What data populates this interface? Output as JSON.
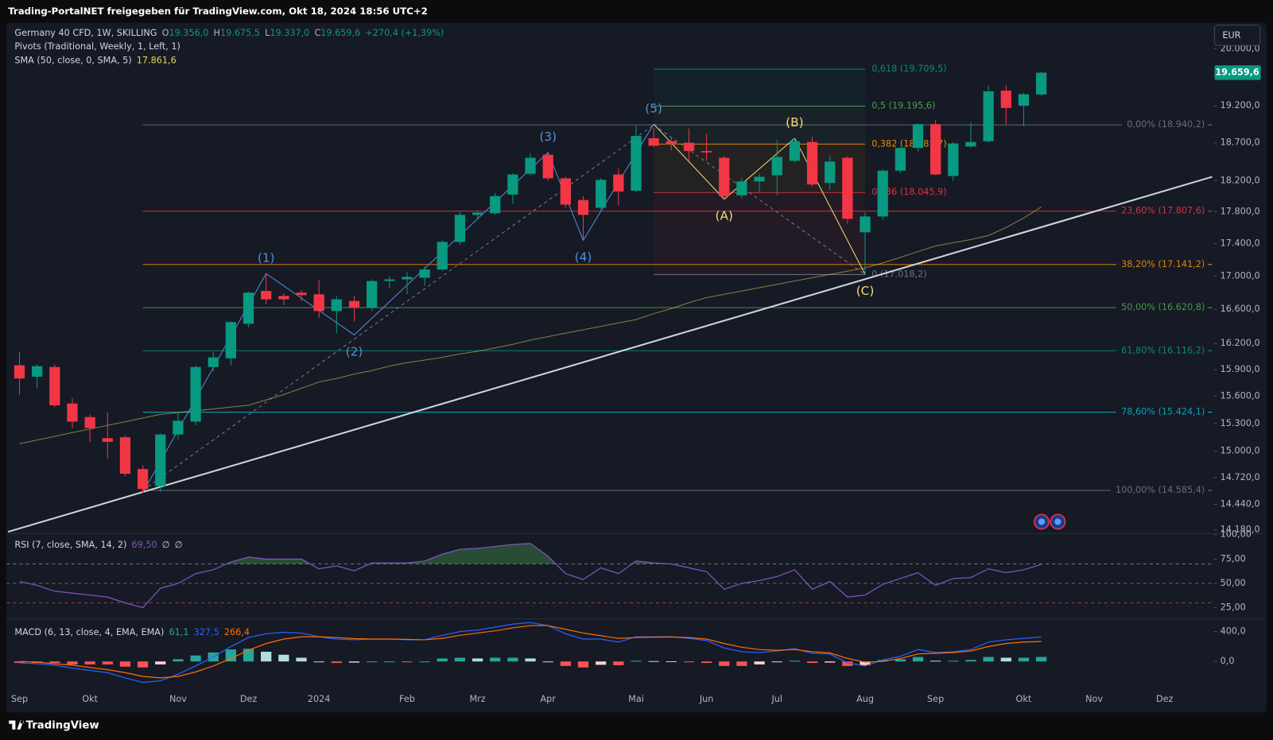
{
  "header": {
    "caption": "Trading-PortalNET freigegeben für TradingView.com, Okt 18, 2024 18:56 UTC+2"
  },
  "toolbar": {
    "currency": "EUR"
  },
  "footer": {
    "brand": "TradingView"
  },
  "chart_data": [
    {
      "type": "candlestick",
      "title": "Germany 40 CFD, 1W, SKILLING",
      "quote": [
        {
          "key": "O",
          "value": "19.356,0"
        },
        {
          "key": "H",
          "value": "19.675,5"
        },
        {
          "key": "L",
          "value": "19.337,0"
        },
        {
          "key": "C",
          "value": "19.659,6"
        },
        {
          "key": "",
          "value": "+270,4 (+1,39%)"
        }
      ],
      "notes": [
        "Pivots (Traditional, Weekly, 1, Left, 1)"
      ],
      "categories": [
        "Sep",
        null,
        null,
        null,
        "Okt",
        null,
        null,
        null,
        null,
        "Nov",
        null,
        null,
        null,
        "Dez",
        null,
        null,
        null,
        "2024",
        null,
        null,
        null,
        null,
        "Feb",
        null,
        null,
        null,
        "Mrz",
        null,
        null,
        null,
        "Apr",
        null,
        null,
        null,
        null,
        "Mai",
        null,
        null,
        null,
        "Jun",
        null,
        null,
        null,
        "Jul",
        null,
        null,
        null,
        null,
        "Aug",
        null,
        null,
        null,
        "Sep",
        null,
        null,
        null,
        null,
        "Okt",
        null,
        null,
        null,
        "Nov",
        null,
        null,
        null,
        "Dez",
        null,
        null
      ],
      "open": [
        15950,
        15820,
        15930,
        15520,
        15370,
        15140,
        15150,
        14810,
        14630,
        15180,
        15320,
        15930,
        16030,
        16430,
        16820,
        16760,
        16800,
        16780,
        16580,
        16700,
        16620,
        16940,
        16960,
        16980,
        17080,
        17420,
        17760,
        17780,
        18020,
        18290,
        18540,
        18230,
        17950,
        17850,
        18280,
        18070,
        18760,
        18720,
        18700,
        18590,
        18500,
        18010,
        18190,
        18270,
        18460,
        18710,
        18170,
        18500,
        17540,
        17740,
        18330,
        18630,
        18950,
        18260,
        18650,
        18720,
        19410,
        19200,
        19356,
        null,
        null,
        null,
        null,
        null,
        null,
        null,
        null,
        null
      ],
      "high": [
        16100,
        15960,
        15960,
        15580,
        15400,
        15420,
        15170,
        14850,
        15190,
        15420,
        15950,
        16100,
        16460,
        16810,
        17030,
        16790,
        16830,
        16950,
        16760,
        16760,
        16960,
        17000,
        17050,
        17120,
        17440,
        17800,
        17820,
        18040,
        18300,
        18560,
        18570,
        18250,
        18000,
        18230,
        18360,
        18930,
        18900,
        18780,
        18890,
        18820,
        18530,
        18230,
        18290,
        18740,
        18770,
        18780,
        18530,
        18520,
        17790,
        18350,
        18640,
        18960,
        19010,
        18710,
        18980,
        19480,
        19490,
        19380,
        19675.5,
        null,
        null,
        null,
        null,
        null,
        null,
        null,
        null,
        null
      ],
      "low": [
        15620,
        15690,
        15480,
        15250,
        15100,
        14920,
        14730,
        14560,
        14570,
        15130,
        15280,
        15880,
        15950,
        16390,
        16660,
        16650,
        16700,
        16500,
        16320,
        16460,
        16580,
        16850,
        16780,
        16880,
        17060,
        17380,
        17700,
        17760,
        17900,
        18270,
        18200,
        17850,
        17440,
        17830,
        17880,
        18050,
        18640,
        18600,
        18450,
        18460,
        17960,
        17970,
        18060,
        18010,
        18440,
        18120,
        18080,
        17650,
        17020,
        17700,
        18300,
        18580,
        18270,
        18200,
        18630,
        18700,
        18950,
        18920,
        19337,
        null,
        null,
        null,
        null,
        null,
        null,
        null,
        null,
        null
      ],
      "close": [
        15800,
        15940,
        15500,
        15320,
        15250,
        15100,
        14760,
        14600,
        15180,
        15330,
        15930,
        16040,
        16450,
        16800,
        16720,
        16720,
        16770,
        16580,
        16720,
        16620,
        16940,
        16960,
        16990,
        17080,
        17420,
        17760,
        17790,
        18000,
        18280,
        18500,
        18230,
        17890,
        17760,
        18210,
        18060,
        18790,
        18660,
        18680,
        18590,
        18570,
        18000,
        18190,
        18250,
        18510,
        18720,
        18150,
        18450,
        17710,
        17740,
        18330,
        18630,
        18950,
        18280,
        18690,
        18710,
        19400,
        19170,
        19360,
        19659.6,
        null,
        null,
        null,
        null,
        null,
        null,
        null,
        null,
        null
      ],
      "up_color": "#089981",
      "down_color": "#f23645",
      "series": [
        {
          "name": "SMA (50, close, 0, SMA, 5)",
          "color": "#e6d35a",
          "last_label": "17.861,6",
          "values": [
            15080,
            15120,
            15160,
            15200,
            15240,
            15280,
            15320,
            15360,
            15400,
            15420,
            15440,
            15460,
            15480,
            15500,
            15560,
            15620,
            15690,
            15760,
            15800,
            15850,
            15890,
            15940,
            15980,
            16010,
            16040,
            16080,
            16110,
            16150,
            16190,
            16240,
            16280,
            16320,
            16360,
            16400,
            16440,
            16480,
            16550,
            16610,
            16680,
            16740,
            16780,
            16820,
            16860,
            16900,
            16940,
            16980,
            17020,
            17060,
            17100,
            17160,
            17230,
            17300,
            17370,
            17410,
            17450,
            17500,
            17600,
            17720,
            17861.6,
            null,
            null,
            null,
            null,
            null,
            null,
            null,
            null,
            null
          ]
        }
      ],
      "log_scale": true,
      "ylim": [
        14147,
        20363
      ],
      "yticks": [
        {
          "value": 20000,
          "label": "20.000,0"
        },
        {
          "value": 19200,
          "label": "19.200,0"
        },
        {
          "value": 18700,
          "label": "18.700,0"
        },
        {
          "value": 18200,
          "label": "18.200,0"
        },
        {
          "value": 17800,
          "label": "17.800,0"
        },
        {
          "value": 17400,
          "label": "17.400,0"
        },
        {
          "value": 17000,
          "label": "17.000,0"
        },
        {
          "value": 16600,
          "label": "16.600,0"
        },
        {
          "value": 16200,
          "label": "16.200,0"
        },
        {
          "value": 15900,
          "label": "15.900,0"
        },
        {
          "value": 15600,
          "label": "15.600,0"
        },
        {
          "value": 15300,
          "label": "15.300,0"
        },
        {
          "value": 15000,
          "label": "15.000,0"
        },
        {
          "value": 14720,
          "label": "14.720,0"
        },
        {
          "value": 14440,
          "label": "14.440,0"
        },
        {
          "value": 14180,
          "label": "14.180,0"
        }
      ],
      "last_price": {
        "value": 19659.6,
        "label": "19.659,6"
      },
      "fibs": [
        {
          "start_index": 7,
          "extend_right": true,
          "levels": [
            {
              "value": 18940.2,
              "label": "0,00% (18.940,2)",
              "color": "#787b86"
            },
            {
              "value": 17807.6,
              "label": "23,60% (17.807,6)",
              "color": "#f23645"
            },
            {
              "value": 17141.2,
              "label": "38,20% (17.141,2)",
              "color": "#ff9800"
            },
            {
              "value": 16620.8,
              "label": "50,00% (16.620,8)",
              "color": "#4caf50"
            },
            {
              "value": 16116.2,
              "label": "61,80% (16.116,2)",
              "color": "#089981"
            },
            {
              "value": 15424.1,
              "label": "78,60% (15.424,1)",
              "color": "#00bcd4"
            },
            {
              "value": 14585.4,
              "label": "100,00% (14.585,4)",
              "color": "#787b86"
            }
          ]
        },
        {
          "start_index": 36,
          "end_index": 48,
          "extend_right": false,
          "levels": [
            {
              "value": 17018.2,
              "label": "0 (17.018,2)",
              "color": "#787b86"
            },
            {
              "value": 18045.9,
              "label": "0,236 (18.045,9)",
              "color": "#f23645"
            },
            {
              "value": 18681.7,
              "label": "0,382 (18.681,7)",
              "color": "#ff9800"
            },
            {
              "value": 19195.6,
              "label": "0,5 (19.195,6)",
              "color": "#4caf50"
            },
            {
              "value": 19709.5,
              "label": "0,618 (19.709,5)",
              "color": "#089981"
            }
          ]
        }
      ],
      "dashed_lines": {
        "color": "#787b86",
        "segments": [
          [
            {
              "index": 7,
              "price": 14585.4
            },
            {
              "index": 36,
              "price": 18940.2
            }
          ],
          [
            {
              "index": 36,
              "price": 18940.2
            },
            {
              "index": 48,
              "price": 17018.2
            }
          ]
        ]
      },
      "waves": [
        {
          "color": "#4f8fdc",
          "points": [
            {
              "index": 7,
              "price": 14560
            },
            {
              "index": 14,
              "price": 17030,
              "label": "(1)"
            },
            {
              "index": 19,
              "price": 16300,
              "label": "(2)"
            },
            {
              "index": 30,
              "price": 18570,
              "label": "(3)"
            },
            {
              "index": 32,
              "price": 17440,
              "label": "(4)"
            },
            {
              "index": 36,
              "price": 18950,
              "label": "(5)"
            }
          ]
        },
        {
          "color": "#f5dd72",
          "points": [
            {
              "index": 36,
              "price": 18950
            },
            {
              "index": 40,
              "price": 17960,
              "label": "(A)"
            },
            {
              "index": 44,
              "price": 18760,
              "label": "(B)"
            },
            {
              "index": 48,
              "price": 17020,
              "label": "(C)"
            }
          ]
        }
      ],
      "trendline": {
        "color": "#d1d4dc",
        "points": [
          {
            "index": -0.65,
            "price": 14160
          },
          {
            "index": 67.7,
            "price": 18250
          }
        ]
      }
    },
    {
      "type": "rsi",
      "notes": [
        "∅",
        "∅"
      ],
      "series": [
        {
          "name": "RSI (7, close, SMA, 14, 2)",
          "color": "#7e57c2",
          "last_label": "69,50",
          "values": [
            52,
            48,
            42,
            40,
            38,
            36,
            30,
            25,
            45,
            50,
            60,
            64,
            72,
            77,
            75,
            75,
            75,
            65,
            68,
            63,
            71,
            71,
            71,
            73,
            80,
            85,
            86,
            88,
            90,
            91,
            78,
            60,
            54,
            66,
            60,
            73,
            71,
            70,
            66,
            62,
            44,
            50,
            53,
            57,
            64,
            44,
            52,
            36,
            38,
            49,
            55,
            61,
            48,
            55,
            56,
            65,
            61,
            64,
            69.5,
            null,
            null,
            null,
            null,
            null,
            null,
            null,
            null,
            null
          ]
        }
      ],
      "levels": [
        {
          "value": 70,
          "color": "#5d7a64"
        },
        {
          "value": 50,
          "color": "#5d606b"
        },
        {
          "value": 30,
          "color": "#8a3a45"
        }
      ],
      "overbought_color": "#4caf50",
      "ylim": [
        13.3,
        100.8
      ],
      "yticks": [
        {
          "value": 100,
          "label": "100,00"
        },
        {
          "value": 75,
          "label": "75,00"
        },
        {
          "value": 50,
          "label": "50,00"
        },
        {
          "value": 25,
          "label": "25,00"
        }
      ]
    },
    {
      "type": "macd",
      "title": "MACD (6, 13, close, 4, EMA, EMA)",
      "histogram": {
        "last_label": "61,1",
        "colors": [
          "#26a69a",
          "#b2dfdb",
          "#ffcdd2",
          "#ff5252"
        ],
        "values": [
          -20,
          -20,
          -20,
          -40,
          -40,
          -40,
          -70,
          -80,
          -40,
          30,
          80,
          120,
          160,
          170,
          130,
          90,
          50,
          0,
          -20,
          -15,
          0,
          0,
          -5,
          0,
          40,
          50,
          40,
          50,
          50,
          40,
          0,
          -60,
          -80,
          -45,
          -50,
          10,
          5,
          2,
          -10,
          -20,
          -60,
          -60,
          -40,
          -10,
          10,
          -20,
          -15,
          -60,
          -50,
          20,
          30,
          60,
          10,
          10,
          20,
          60,
          50,
          50,
          61.1,
          null,
          null,
          null,
          null,
          null,
          null,
          null,
          null,
          null
        ]
      },
      "series": [
        {
          "name": "MACD",
          "color": "#2962ff",
          "last_label": "327,5",
          "values": [
            -20,
            -30,
            -50,
            -90,
            -120,
            -150,
            -220,
            -280,
            -260,
            -170,
            -60,
            60,
            200,
            320,
            370,
            390,
            380,
            330,
            300,
            290,
            300,
            300,
            290,
            290,
            350,
            400,
            420,
            460,
            500,
            520,
            480,
            370,
            300,
            300,
            260,
            330,
            330,
            330,
            310,
            280,
            180,
            130,
            120,
            140,
            170,
            110,
            100,
            -20,
            -60,
            20,
            70,
            160,
            120,
            130,
            160,
            260,
            290,
            310,
            327.5,
            null,
            null,
            null,
            null,
            null,
            null,
            null,
            null,
            null
          ]
        },
        {
          "name": "Signal",
          "color": "#ff6d00",
          "last_label": "266,4",
          "values": [
            0,
            -10,
            -30,
            -50,
            -80,
            -110,
            -150,
            -200,
            -220,
            -200,
            -140,
            -60,
            40,
            150,
            240,
            300,
            330,
            330,
            320,
            305,
            300,
            300,
            295,
            290,
            310,
            350,
            380,
            410,
            450,
            480,
            480,
            430,
            380,
            345,
            310,
            320,
            325,
            328,
            320,
            300,
            240,
            190,
            160,
            150,
            160,
            130,
            115,
            40,
            -10,
            0,
            40,
            100,
            110,
            120,
            140,
            200,
            240,
            260,
            266.4,
            null,
            null,
            null,
            null,
            null,
            null,
            null,
            null,
            null
          ]
        }
      ],
      "ylim": [
        -378,
        567
      ],
      "yticks": [
        {
          "value": 400,
          "label": "400,0"
        },
        {
          "value": 0,
          "label": "0,0"
        }
      ]
    }
  ]
}
